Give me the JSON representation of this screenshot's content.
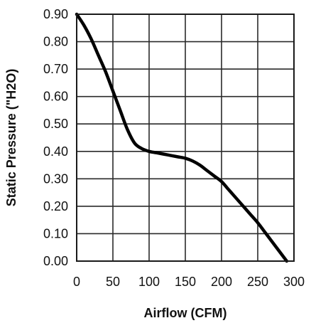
{
  "chart_data": {
    "type": "line",
    "title": "",
    "xlabel": "Airflow (CFM)",
    "ylabel": "Static Pressure (\"H2O)",
    "xlim": [
      0,
      300
    ],
    "ylim": [
      0,
      0.9
    ],
    "grid": true,
    "x_ticks": [
      "0",
      "50",
      "100",
      "150",
      "200",
      "250",
      "300"
    ],
    "y_ticks": [
      "0.00",
      "0.10",
      "0.20",
      "0.30",
      "0.40",
      "0.50",
      "0.60",
      "0.70",
      "0.80",
      "0.90"
    ],
    "series": [
      {
        "name": "",
        "color": "#000000",
        "points": [
          [
            0,
            0.9
          ],
          [
            10,
            0.86
          ],
          [
            20,
            0.81
          ],
          [
            30,
            0.75
          ],
          [
            40,
            0.69
          ],
          [
            50,
            0.62
          ],
          [
            60,
            0.55
          ],
          [
            70,
            0.48
          ],
          [
            80,
            0.43
          ],
          [
            90,
            0.41
          ],
          [
            100,
            0.4
          ],
          [
            110,
            0.395
          ],
          [
            120,
            0.39
          ],
          [
            130,
            0.385
          ],
          [
            140,
            0.38
          ],
          [
            150,
            0.375
          ],
          [
            160,
            0.365
          ],
          [
            170,
            0.35
          ],
          [
            180,
            0.33
          ],
          [
            190,
            0.31
          ],
          [
            200,
            0.29
          ],
          [
            210,
            0.26
          ],
          [
            220,
            0.23
          ],
          [
            230,
            0.2
          ],
          [
            240,
            0.17
          ],
          [
            250,
            0.14
          ],
          [
            260,
            0.105
          ],
          [
            270,
            0.07
          ],
          [
            280,
            0.035
          ],
          [
            290,
            0.0
          ]
        ]
      }
    ]
  }
}
